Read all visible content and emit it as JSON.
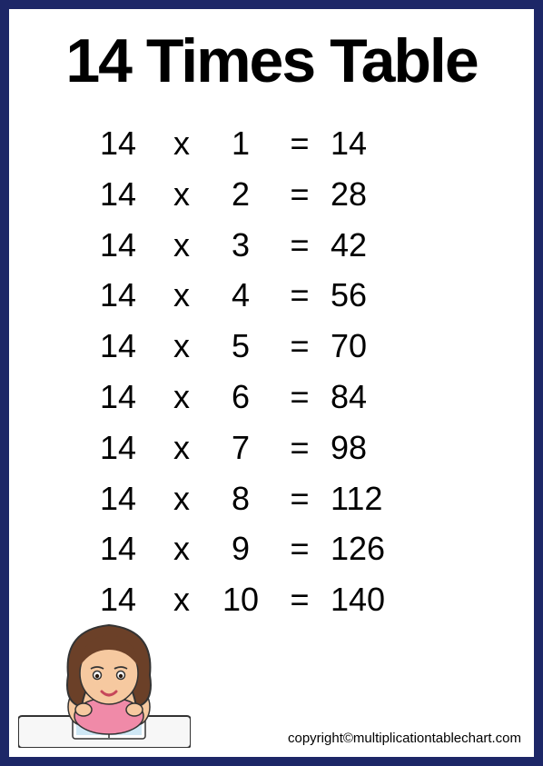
{
  "title": "14 Times Table",
  "title_fontsize": 68,
  "row_fontsize": 36,
  "copyright_fontsize": 15,
  "colors": {
    "border": "#1d2767",
    "background": "#ffffff",
    "text": "#000000",
    "hair": "#6b4028",
    "hair_shadow": "#4e2f1d",
    "skin": "#f6c9a0",
    "shirt": "#f08aa8",
    "desk": "#f7f7f7",
    "book": "#ffffff",
    "book_page": "#cfe8f5",
    "lips": "#c6475a"
  },
  "table": {
    "multiplicand": 14,
    "operator": "x",
    "equals": "=",
    "rows": [
      {
        "factor": 1,
        "result": 14
      },
      {
        "factor": 2,
        "result": 28
      },
      {
        "factor": 3,
        "result": 42
      },
      {
        "factor": 4,
        "result": 56
      },
      {
        "factor": 5,
        "result": 70
      },
      {
        "factor": 6,
        "result": 84
      },
      {
        "factor": 7,
        "result": 98
      },
      {
        "factor": 8,
        "result": 112
      },
      {
        "factor": 9,
        "result": 126
      },
      {
        "factor": 10,
        "result": 140
      }
    ]
  },
  "copyright": "copyright©multiplicationtablechart.com",
  "illustration_name": "girl-reading-at-desk"
}
